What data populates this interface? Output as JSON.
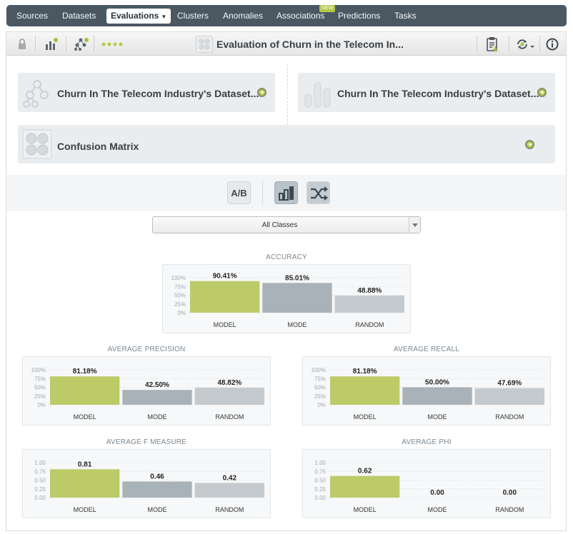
{
  "nav": {
    "items": [
      "Sources",
      "Datasets",
      "Evaluations",
      "Clusters",
      "Anomalies",
      "Associations",
      "Predictions",
      "Tasks"
    ],
    "active": "Evaluations",
    "new_badge": "NEW"
  },
  "toolbar": {
    "title": "Evaluation of Churn in the Telecom In..."
  },
  "cards": {
    "model_title": "Churn In The Telecom Industry's Dataset...",
    "dataset_title": "Churn In The Telecom Industry's Dataset...",
    "matrix_title": "Confusion Matrix"
  },
  "view_buttons": {
    "ab_label": "A/B"
  },
  "class_select": {
    "value": "All Classes"
  },
  "colors": {
    "model": "#bccb68",
    "mode": "#a8b2b8",
    "random": "#c4cace",
    "nav_bg": "#4b5862",
    "accent": "#b5c94a"
  },
  "chart_data": [
    {
      "type": "bar",
      "title": "ACCURACY",
      "categories": [
        "MODEL",
        "MODE",
        "RANDOM"
      ],
      "values": [
        90.41,
        85.01,
        48.88
      ],
      "labels": [
        "90.41%",
        "85.01%",
        "48.88%"
      ],
      "yticks": [
        "100%",
        "75%",
        "50%",
        "25%",
        "0%"
      ],
      "ylim": [
        0,
        100
      ]
    },
    {
      "type": "bar",
      "title": "AVERAGE PRECISION",
      "categories": [
        "MODEL",
        "MODE",
        "RANDOM"
      ],
      "values": [
        81.18,
        42.5,
        48.82
      ],
      "labels": [
        "81.18%",
        "42.50%",
        "48.82%"
      ],
      "yticks": [
        "100%",
        "75%",
        "50%",
        "25%",
        "0%"
      ],
      "ylim": [
        0,
        100
      ]
    },
    {
      "type": "bar",
      "title": "AVERAGE RECALL",
      "categories": [
        "MODEL",
        "MODE",
        "RANDOM"
      ],
      "values": [
        81.18,
        50.0,
        47.69
      ],
      "labels": [
        "81.18%",
        "50.00%",
        "47.69%"
      ],
      "yticks": [
        "100%",
        "75%",
        "50%",
        "25%",
        "0%"
      ],
      "ylim": [
        0,
        100
      ]
    },
    {
      "type": "bar",
      "title": "AVERAGE F MEASURE",
      "categories": [
        "MODEL",
        "MODE",
        "RANDOM"
      ],
      "values": [
        0.81,
        0.46,
        0.42
      ],
      "labels": [
        "0.81",
        "0.46",
        "0.42"
      ],
      "yticks": [
        "1.00",
        "0.75",
        "0.50",
        "0.25",
        "0.00"
      ],
      "ylim": [
        0,
        1
      ]
    },
    {
      "type": "bar",
      "title": "AVERAGE PHI",
      "categories": [
        "MODEL",
        "MODE",
        "RANDOM"
      ],
      "values": [
        0.62,
        0.0,
        0.0
      ],
      "labels": [
        "0.62",
        "0.00",
        "0.00"
      ],
      "yticks": [
        "1.00",
        "0.75",
        "0.50",
        "0.25",
        "0.00"
      ],
      "ylim": [
        0,
        1
      ]
    }
  ]
}
